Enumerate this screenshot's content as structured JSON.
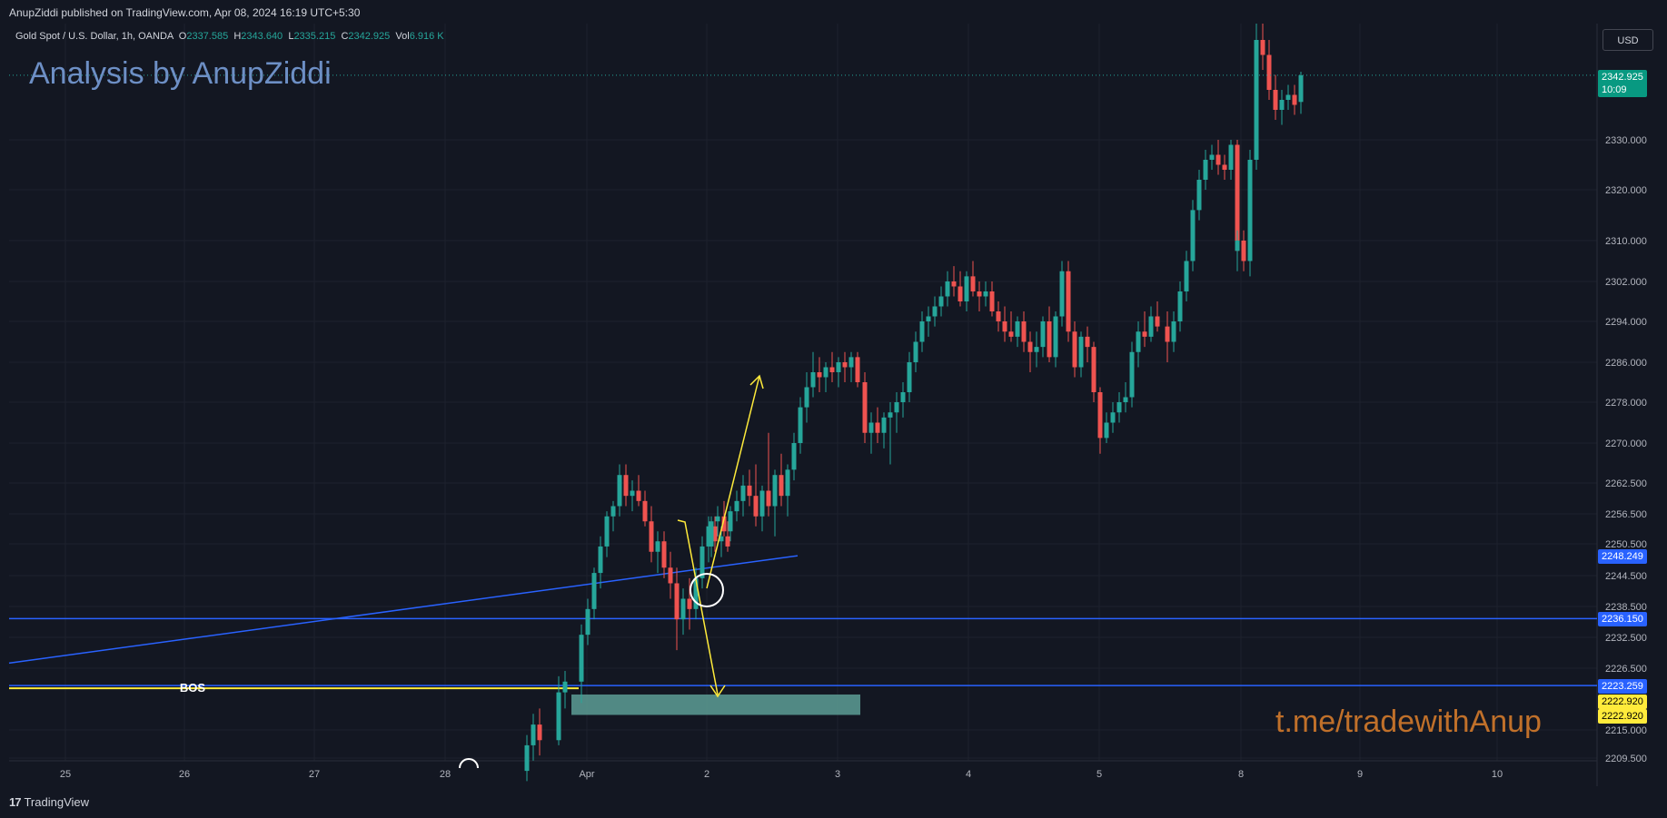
{
  "header": {
    "published_text": "AnupZiddi published on TradingView.com, Apr 08, 2024 16:19 UTC+5:30"
  },
  "legend": {
    "symbol": "Gold Spot / U.S. Dollar, 1h, OANDA",
    "o_label": "O",
    "o_value": "2337.585",
    "h_label": "H",
    "h_value": "2343.640",
    "l_label": "L",
    "l_value": "2335.215",
    "c_label": "C",
    "c_value": "2342.925",
    "vol_label": "Vol",
    "vol_value": "6.916 K"
  },
  "annotations": {
    "watermark": "Analysis by AnupZiddi",
    "telegram": "t.me/tradewithAnup",
    "bos": "BOS"
  },
  "currency_button": "USD",
  "footer": {
    "brand": "TradingView"
  },
  "colors": {
    "background": "#131722",
    "up": "#26a69a",
    "down": "#ef5350",
    "blue_line": "#2962ff",
    "yellow": "#ffeb3b",
    "zone": "#5d9e95"
  },
  "price_badges": {
    "last_price": "2342.925",
    "countdown": "10:09",
    "trendline": "2248.249",
    "level_1": "2236.150",
    "level_2": "2223.259",
    "bos_1": "2222.920",
    "bos_2": "2222.920"
  },
  "chart_data": {
    "type": "candlestick",
    "symbol": "Gold Spot / U.S. Dollar",
    "interval": "1h",
    "x_ticks": [
      "25",
      "26",
      "27",
      "28",
      "Apr",
      "2",
      "3",
      "4",
      "5",
      "8",
      "9",
      "10"
    ],
    "y_ticks": [
      "2330.000",
      "2320.000",
      "2310.000",
      "2302.000",
      "2294.000",
      "2286.000",
      "2278.000",
      "2270.000",
      "2262.500",
      "2256.500",
      "2250.500",
      "2244.500",
      "2238.500",
      "2232.500",
      "2226.500",
      "2215.000",
      "2209.500"
    ],
    "ylim": [
      2208,
      2358
    ],
    "horizontal_levels": [
      2236.15,
      2223.259
    ],
    "bos_level": 2222.92,
    "trendline": {
      "start": [
        "25 open",
        2227.5
      ],
      "end": [
        "Apr 2",
        2248.249
      ]
    },
    "demand_zone": {
      "top": 2221.6,
      "bottom": 2217.8,
      "from": "Apr 1",
      "to": "Apr 3"
    },
    "candles": [
      {
        "t": "Mar 28 21:00",
        "o": 2207,
        "h": 2214,
        "l": 2205,
        "c": 2212
      },
      {
        "t": "Mar 28 22:00",
        "o": 2212,
        "h": 2218,
        "l": 2209,
        "c": 2216
      },
      {
        "t": "Mar 28 23:00",
        "o": 2216,
        "h": 2219,
        "l": 2210,
        "c": 2213
      },
      {
        "t": "Mar 29 00:00",
        "o": 2213,
        "h": 2225,
        "l": 2212,
        "c": 2222
      },
      {
        "t": "Mar 29 01:00",
        "o": 2222,
        "h": 2226,
        "l": 2219,
        "c": 2224
      },
      {
        "t": "Apr 1 00:00",
        "o": 2224,
        "h": 2235,
        "l": 2220,
        "c": 2233
      },
      {
        "t": "Apr 1 01:00",
        "o": 2233,
        "h": 2240,
        "l": 2231,
        "c": 2238
      },
      {
        "t": "Apr 1 02:00",
        "o": 2238,
        "h": 2246,
        "l": 2236,
        "c": 2245
      },
      {
        "t": "Apr 1 03:00",
        "o": 2245,
        "h": 2252,
        "l": 2242,
        "c": 2250
      },
      {
        "t": "Apr 1 04:00",
        "o": 2250,
        "h": 2257,
        "l": 2248,
        "c": 2256
      },
      {
        "t": "Apr 1 05:00",
        "o": 2256,
        "h": 2259,
        "l": 2253,
        "c": 2258
      },
      {
        "t": "Apr 1 06:00",
        "o": 2258,
        "h": 2266,
        "l": 2256,
        "c": 2264
      },
      {
        "t": "Apr 1 07:00",
        "o": 2264,
        "h": 2266,
        "l": 2258,
        "c": 2260
      },
      {
        "t": "Apr 1 08:00",
        "o": 2260,
        "h": 2263,
        "l": 2257,
        "c": 2261
      },
      {
        "t": "Apr 1 09:00",
        "o": 2261,
        "h": 2264,
        "l": 2258,
        "c": 2259
      },
      {
        "t": "Apr 1 10:00",
        "o": 2259,
        "h": 2261,
        "l": 2254,
        "c": 2255
      },
      {
        "t": "Apr 1 11:00",
        "o": 2255,
        "h": 2258,
        "l": 2247,
        "c": 2249
      },
      {
        "t": "Apr 1 12:00",
        "o": 2249,
        "h": 2253,
        "l": 2245,
        "c": 2251
      },
      {
        "t": "Apr 1 13:00",
        "o": 2251,
        "h": 2253,
        "l": 2244,
        "c": 2246
      },
      {
        "t": "Apr 1 14:00",
        "o": 2246,
        "h": 2249,
        "l": 2240,
        "c": 2243
      },
      {
        "t": "Apr 1 15:00",
        "o": 2243,
        "h": 2246,
        "l": 2230,
        "c": 2236
      },
      {
        "t": "Apr 1 16:00",
        "o": 2236,
        "h": 2242,
        "l": 2233,
        "c": 2240
      },
      {
        "t": "Apr 1 17:00",
        "o": 2240,
        "h": 2244,
        "l": 2234,
        "c": 2238
      },
      {
        "t": "Apr 1 18:00",
        "o": 2238,
        "h": 2246,
        "l": 2236,
        "c": 2244
      },
      {
        "t": "Apr 1 19:00",
        "o": 2244,
        "h": 2252,
        "l": 2242,
        "c": 2250
      },
      {
        "t": "Apr 1 20:00",
        "o": 2250,
        "h": 2256,
        "l": 2247,
        "c": 2254
      },
      {
        "t": "Apr 1 21:00",
        "o": 2254,
        "h": 2256,
        "l": 2249,
        "c": 2251
      },
      {
        "t": "Apr 1 22:00",
        "o": 2251,
        "h": 2254,
        "l": 2248,
        "c": 2252
      },
      {
        "t": "Apr 1 23:00",
        "o": 2252,
        "h": 2255,
        "l": 2249,
        "c": 2250
      },
      {
        "t": "Apr 2 00:00",
        "o": 2250,
        "h": 2256,
        "l": 2248,
        "c": 2255
      },
      {
        "t": "Apr 2 01:00",
        "o": 2255,
        "h": 2258,
        "l": 2252,
        "c": 2256
      },
      {
        "t": "Apr 2 02:00",
        "o": 2256,
        "h": 2259,
        "l": 2252,
        "c": 2253
      },
      {
        "t": "Apr 2 03:00",
        "o": 2253,
        "h": 2258,
        "l": 2251,
        "c": 2257
      },
      {
        "t": "Apr 2 04:00",
        "o": 2257,
        "h": 2261,
        "l": 2255,
        "c": 2259
      },
      {
        "t": "Apr 2 05:00",
        "o": 2259,
        "h": 2264,
        "l": 2256,
        "c": 2262
      },
      {
        "t": "Apr 2 06:00",
        "o": 2262,
        "h": 2265,
        "l": 2258,
        "c": 2260
      },
      {
        "t": "Apr 2 07:00",
        "o": 2260,
        "h": 2266,
        "l": 2254,
        "c": 2256
      },
      {
        "t": "Apr 2 08:00",
        "o": 2256,
        "h": 2262,
        "l": 2253,
        "c": 2261
      },
      {
        "t": "Apr 2 09:00",
        "o": 2261,
        "h": 2272,
        "l": 2256,
        "c": 2258
      },
      {
        "t": "Apr 2 10:00",
        "o": 2258,
        "h": 2265,
        "l": 2252,
        "c": 2264
      },
      {
        "t": "Apr 2 11:00",
        "o": 2264,
        "h": 2268,
        "l": 2258,
        "c": 2260
      },
      {
        "t": "Apr 2 12:00",
        "o": 2260,
        "h": 2266,
        "l": 2256,
        "c": 2265
      },
      {
        "t": "Apr 2 13:00",
        "o": 2265,
        "h": 2272,
        "l": 2263,
        "c": 2270
      },
      {
        "t": "Apr 2 14:00",
        "o": 2270,
        "h": 2279,
        "l": 2268,
        "c": 2277
      },
      {
        "t": "Apr 2 15:00",
        "o": 2277,
        "h": 2284,
        "l": 2274,
        "c": 2281
      },
      {
        "t": "Apr 2 16:00",
        "o": 2281,
        "h": 2288,
        "l": 2279,
        "c": 2284
      },
      {
        "t": "Apr 2 17:00",
        "o": 2284,
        "h": 2287,
        "l": 2280,
        "c": 2283
      },
      {
        "t": "Apr 2 18:00",
        "o": 2283,
        "h": 2286,
        "l": 2280,
        "c": 2285
      },
      {
        "t": "Apr 2 19:00",
        "o": 2285,
        "h": 2288,
        "l": 2282,
        "c": 2284
      },
      {
        "t": "Apr 2 20:00",
        "o": 2284,
        "h": 2287,
        "l": 2281,
        "c": 2286
      },
      {
        "t": "Apr 2 21:00",
        "o": 2286,
        "h": 2288,
        "l": 2282,
        "c": 2285
      },
      {
        "t": "Apr 2 22:00",
        "o": 2285,
        "h": 2288,
        "l": 2282,
        "c": 2287
      },
      {
        "t": "Apr 2 23:00",
        "o": 2287,
        "h": 2288,
        "l": 2281,
        "c": 2282
      },
      {
        "t": "Apr 3 00:00",
        "o": 2282,
        "h": 2284,
        "l": 2270,
        "c": 2272
      },
      {
        "t": "Apr 3 01:00",
        "o": 2272,
        "h": 2276,
        "l": 2268,
        "c": 2274
      },
      {
        "t": "Apr 3 02:00",
        "o": 2274,
        "h": 2277,
        "l": 2270,
        "c": 2272
      },
      {
        "t": "Apr 3 03:00",
        "o": 2272,
        "h": 2276,
        "l": 2269,
        "c": 2275
      },
      {
        "t": "Apr 3 04:00",
        "o": 2275,
        "h": 2278,
        "l": 2266,
        "c": 2276
      },
      {
        "t": "Apr 3 05:00",
        "o": 2276,
        "h": 2280,
        "l": 2272,
        "c": 2278
      },
      {
        "t": "Apr 3 06:00",
        "o": 2278,
        "h": 2282,
        "l": 2275,
        "c": 2280
      },
      {
        "t": "Apr 3 07:00",
        "o": 2280,
        "h": 2288,
        "l": 2278,
        "c": 2286
      },
      {
        "t": "Apr 3 08:00",
        "o": 2286,
        "h": 2292,
        "l": 2284,
        "c": 2290
      },
      {
        "t": "Apr 3 09:00",
        "o": 2290,
        "h": 2296,
        "l": 2288,
        "c": 2294
      },
      {
        "t": "Apr 3 10:00",
        "o": 2294,
        "h": 2297,
        "l": 2291,
        "c": 2295
      },
      {
        "t": "Apr 3 11:00",
        "o": 2295,
        "h": 2299,
        "l": 2293,
        "c": 2297
      },
      {
        "t": "Apr 3 12:00",
        "o": 2297,
        "h": 2301,
        "l": 2295,
        "c": 2299
      },
      {
        "t": "Apr 3 13:00",
        "o": 2299,
        "h": 2304,
        "l": 2297,
        "c": 2302
      },
      {
        "t": "Apr 3 14:00",
        "o": 2302,
        "h": 2305,
        "l": 2299,
        "c": 2301
      },
      {
        "t": "Apr 3 15:00",
        "o": 2301,
        "h": 2304,
        "l": 2297,
        "c": 2298
      },
      {
        "t": "Apr 3 16:00",
        "o": 2298,
        "h": 2304,
        "l": 2296,
        "c": 2303
      },
      {
        "t": "Apr 3 17:00",
        "o": 2303,
        "h": 2306,
        "l": 2299,
        "c": 2300
      },
      {
        "t": "Apr 3 18:00",
        "o": 2300,
        "h": 2302,
        "l": 2296,
        "c": 2299
      },
      {
        "t": "Apr 3 19:00",
        "o": 2299,
        "h": 2302,
        "l": 2297,
        "c": 2300
      },
      {
        "t": "Apr 3 20:00",
        "o": 2300,
        "h": 2302,
        "l": 2295,
        "c": 2296
      },
      {
        "t": "Apr 3 21:00",
        "o": 2296,
        "h": 2298,
        "l": 2292,
        "c": 2294
      },
      {
        "t": "Apr 3 22:00",
        "o": 2294,
        "h": 2297,
        "l": 2290,
        "c": 2292
      },
      {
        "t": "Apr 3 23:00",
        "o": 2292,
        "h": 2296,
        "l": 2290,
        "c": 2291
      },
      {
        "t": "Apr 4 00:00",
        "o": 2291,
        "h": 2295,
        "l": 2289,
        "c": 2294
      },
      {
        "t": "Apr 4 01:00",
        "o": 2294,
        "h": 2296,
        "l": 2288,
        "c": 2290
      },
      {
        "t": "Apr 4 02:00",
        "o": 2290,
        "h": 2292,
        "l": 2284,
        "c": 2288
      },
      {
        "t": "Apr 4 03:00",
        "o": 2288,
        "h": 2292,
        "l": 2285,
        "c": 2289
      },
      {
        "t": "Apr 4 04:00",
        "o": 2289,
        "h": 2295,
        "l": 2287,
        "c": 2294
      },
      {
        "t": "Apr 4 05:00",
        "o": 2294,
        "h": 2297,
        "l": 2286,
        "c": 2287
      },
      {
        "t": "Apr 4 06:00",
        "o": 2287,
        "h": 2296,
        "l": 2285,
        "c": 2295
      },
      {
        "t": "Apr 4 07:00",
        "o": 2295,
        "h": 2306,
        "l": 2293,
        "c": 2304
      },
      {
        "t": "Apr 4 08:00",
        "o": 2304,
        "h": 2306,
        "l": 2290,
        "c": 2292
      },
      {
        "t": "Apr 4 09:00",
        "o": 2292,
        "h": 2294,
        "l": 2283,
        "c": 2285
      },
      {
        "t": "Apr 4 10:00",
        "o": 2285,
        "h": 2292,
        "l": 2283,
        "c": 2291
      },
      {
        "t": "Apr 4 11:00",
        "o": 2291,
        "h": 2293,
        "l": 2286,
        "c": 2289
      },
      {
        "t": "Apr 4 12:00",
        "o": 2289,
        "h": 2290,
        "l": 2278,
        "c": 2280
      },
      {
        "t": "Apr 4 13:00",
        "o": 2280,
        "h": 2281,
        "l": 2268,
        "c": 2271
      },
      {
        "t": "Apr 4 14:00",
        "o": 2271,
        "h": 2276,
        "l": 2270,
        "c": 2274
      },
      {
        "t": "Apr 4 15:00",
        "o": 2274,
        "h": 2278,
        "l": 2272,
        "c": 2276
      },
      {
        "t": "Apr 4 16:00",
        "o": 2276,
        "h": 2280,
        "l": 2274,
        "c": 2278
      },
      {
        "t": "Apr 4 17:00",
        "o": 2278,
        "h": 2282,
        "l": 2276,
        "c": 2279
      },
      {
        "t": "Apr 4 18:00",
        "o": 2279,
        "h": 2290,
        "l": 2277,
        "c": 2288
      },
      {
        "t": "Apr 4 19:00",
        "o": 2288,
        "h": 2294,
        "l": 2285,
        "c": 2292
      },
      {
        "t": "Apr 4 20:00",
        "o": 2292,
        "h": 2296,
        "l": 2289,
        "c": 2291
      },
      {
        "t": "Apr 4 21:00",
        "o": 2291,
        "h": 2297,
        "l": 2290,
        "c": 2295
      },
      {
        "t": "Apr 4 22:00",
        "o": 2295,
        "h": 2298,
        "l": 2292,
        "c": 2293
      },
      {
        "t": "Apr 5 00:00",
        "o": 2293,
        "h": 2296,
        "l": 2286,
        "c": 2290
      },
      {
        "t": "Apr 5 01:00",
        "o": 2290,
        "h": 2296,
        "l": 2288,
        "c": 2294
      },
      {
        "t": "Apr 5 02:00",
        "o": 2294,
        "h": 2302,
        "l": 2292,
        "c": 2300
      },
      {
        "t": "Apr 5 03:00",
        "o": 2300,
        "h": 2308,
        "l": 2298,
        "c": 2306
      },
      {
        "t": "Apr 5 04:00",
        "o": 2306,
        "h": 2318,
        "l": 2304,
        "c": 2316
      },
      {
        "t": "Apr 5 05:00",
        "o": 2316,
        "h": 2324,
        "l": 2314,
        "c": 2322
      },
      {
        "t": "Apr 5 06:00",
        "o": 2322,
        "h": 2328,
        "l": 2320,
        "c": 2326
      },
      {
        "t": "Apr 5 07:00",
        "o": 2326,
        "h": 2329,
        "l": 2324,
        "c": 2327
      },
      {
        "t": "Apr 5 08:00",
        "o": 2327,
        "h": 2330,
        "l": 2323,
        "c": 2325
      },
      {
        "t": "Apr 5 09:00",
        "o": 2325,
        "h": 2327,
        "l": 2322,
        "c": 2324
      },
      {
        "t": "Apr 5 10:00",
        "o": 2324,
        "h": 2330,
        "l": 2322,
        "c": 2329
      },
      {
        "t": "Apr 5 11:00",
        "o": 2329,
        "h": 2330,
        "l": 2306,
        "c": 2308
      },
      {
        "t": "Apr 8 00:00",
        "o": 2308,
        "h": 2312,
        "l": 2304,
        "c": 2310
      },
      {
        "t": "Apr 8 01:00",
        "o": 2310,
        "h": 2312,
        "l": 2304,
        "c": 2306
      },
      {
        "t": "Apr 8 02:00",
        "o": 2306,
        "h": 2328,
        "l": 2303,
        "c": 2326
      },
      {
        "t": "Apr 8 03:00",
        "o": 2326,
        "h": 2356,
        "l": 2324,
        "c": 2350
      },
      {
        "t": "Apr 8 04:00",
        "o": 2350,
        "h": 2354,
        "l": 2344,
        "c": 2347
      },
      {
        "t": "Apr 8 05:00",
        "o": 2347,
        "h": 2350,
        "l": 2338,
        "c": 2340
      },
      {
        "t": "Apr 8 06:00",
        "o": 2340,
        "h": 2343,
        "l": 2334,
        "c": 2336
      },
      {
        "t": "Apr 8 07:00",
        "o": 2336,
        "h": 2340,
        "l": 2333,
        "c": 2338
      },
      {
        "t": "Apr 8 08:00",
        "o": 2338,
        "h": 2341,
        "l": 2336,
        "c": 2339
      },
      {
        "t": "Apr 8 09:00",
        "o": 2339,
        "h": 2341,
        "l": 2335,
        "c": 2337
      },
      {
        "t": "Apr 8 10:00",
        "o": 2337.585,
        "h": 2343.64,
        "l": 2335.215,
        "c": 2342.925
      }
    ]
  }
}
